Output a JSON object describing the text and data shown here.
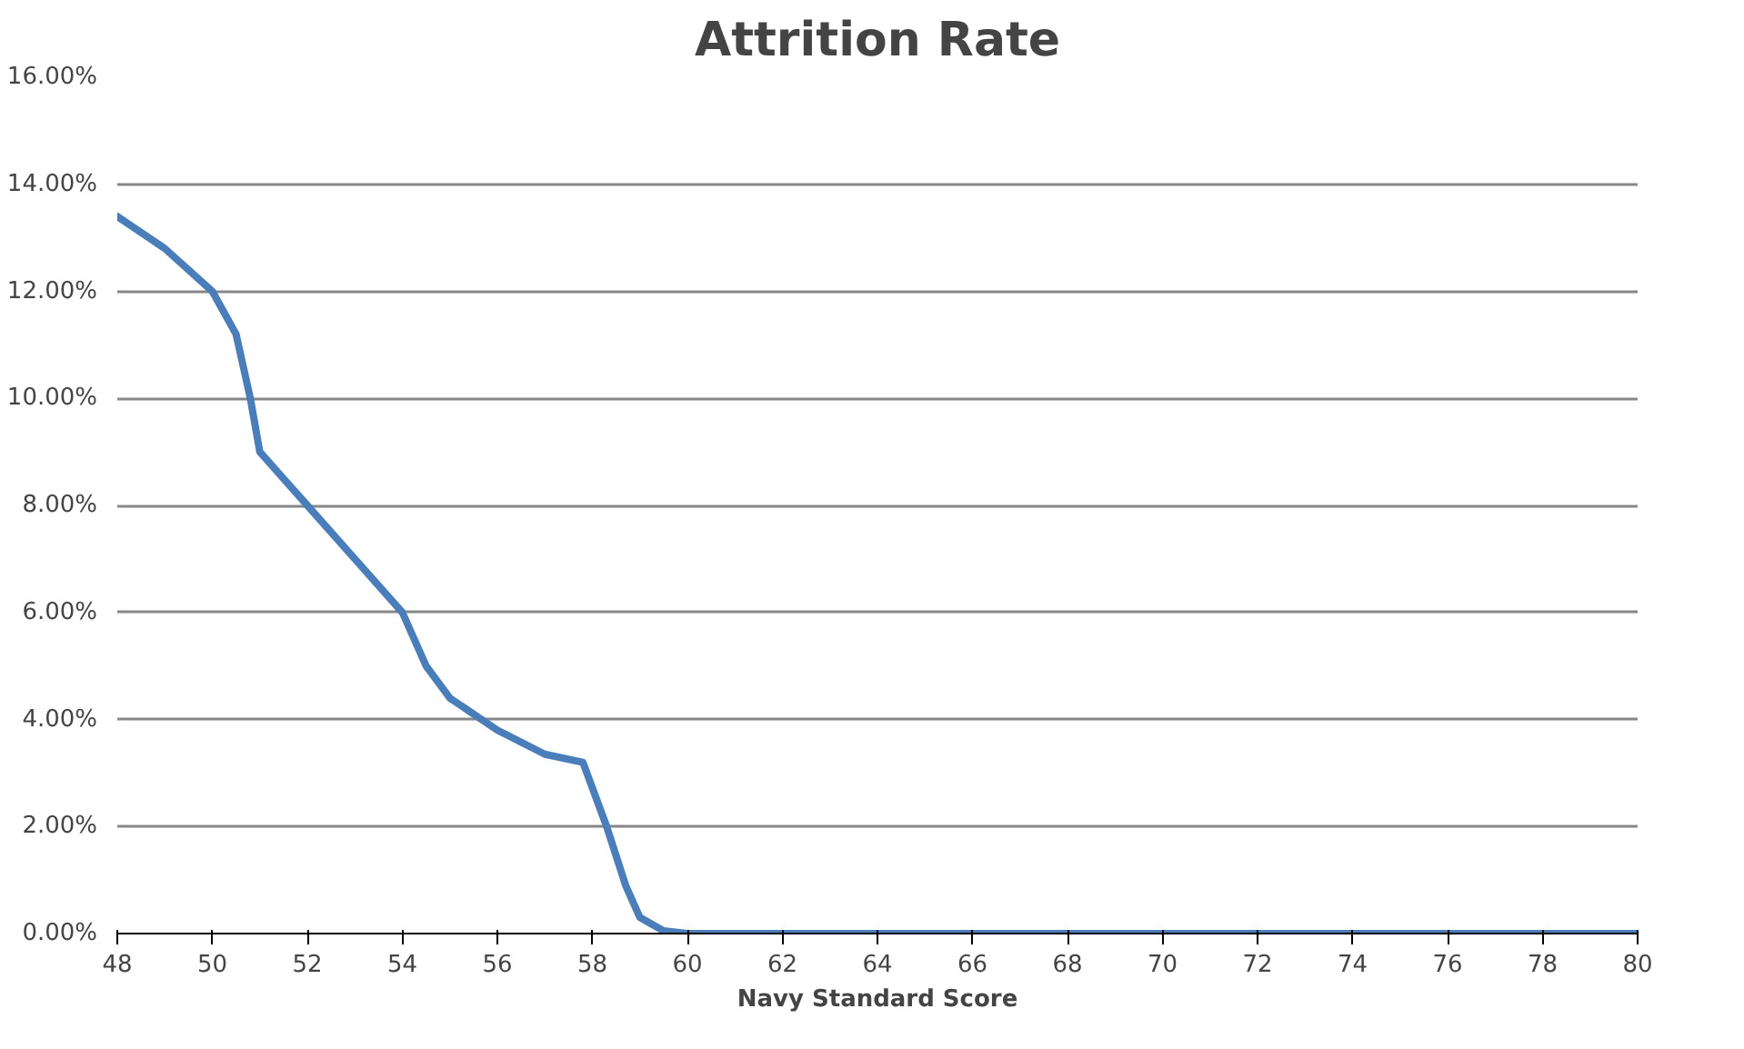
{
  "chart_data": {
    "type": "line",
    "title": "Attrition Rate",
    "xlabel": "Navy Standard Score",
    "x": [
      48,
      49,
      50,
      50.5,
      50.8,
      51,
      51.5,
      52,
      53,
      54,
      54.5,
      55,
      56,
      57,
      57.8,
      58.3,
      58.7,
      59,
      59.5,
      60,
      62,
      64,
      66,
      68,
      70,
      72,
      74,
      76,
      78,
      80
    ],
    "series": [
      {
        "color": "#4a7ebb",
        "values": [
          13.4,
          12.8,
          12.0,
          11.2,
          10.0,
          9.0,
          8.5,
          8.0,
          7.0,
          6.0,
          5.0,
          4.4,
          3.8,
          3.35,
          3.2,
          2.0,
          0.9,
          0.3,
          0.05,
          0,
          0,
          0,
          0,
          0,
          0,
          0,
          0,
          0,
          0,
          0
        ]
      }
    ],
    "xlim": [
      48,
      80
    ],
    "xticks": [
      48,
      50,
      52,
      54,
      56,
      58,
      60,
      62,
      64,
      66,
      68,
      70,
      72,
      74,
      76,
      78,
      80
    ],
    "ylim": [
      0,
      16
    ],
    "yticks": [
      {
        "value": 0,
        "label": "0.00%"
      },
      {
        "value": 2,
        "label": "2.00%"
      },
      {
        "value": 4,
        "label": "4.00%"
      },
      {
        "value": 6,
        "label": "6.00%"
      },
      {
        "value": 8,
        "label": "8.00%"
      },
      {
        "value": 10,
        "label": "10.00%"
      },
      {
        "value": 12,
        "label": "12.00%"
      },
      {
        "value": 14,
        "label": "14.00%"
      },
      {
        "value": 16,
        "label": "16.00%"
      }
    ],
    "grid": "y",
    "marker": "none",
    "line_style": "solid"
  }
}
